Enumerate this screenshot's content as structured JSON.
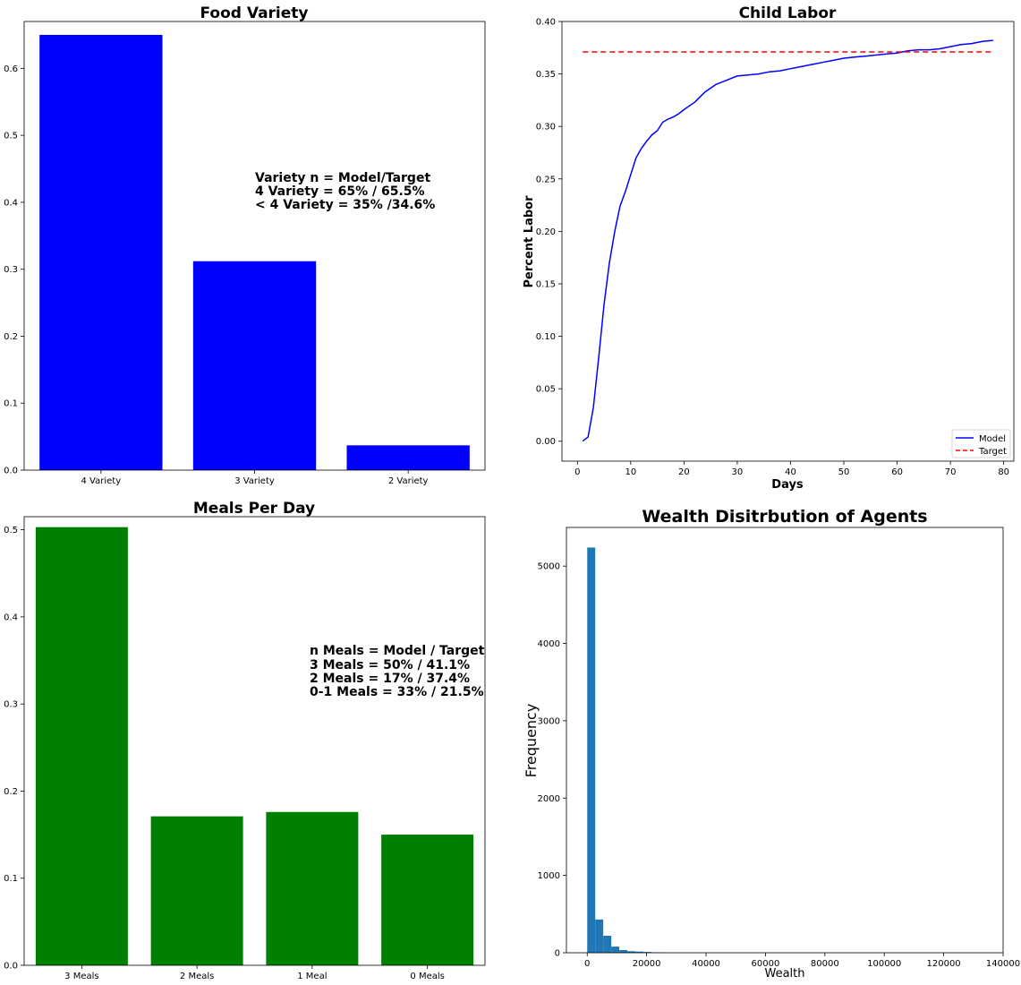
{
  "chart_data": [
    {
      "type": "bar",
      "title": "Food Variety",
      "categories": [
        "4 Variety",
        "3 Variety",
        "2 Variety"
      ],
      "values": [
        0.65,
        0.312,
        0.037
      ],
      "ylim": [
        0,
        0.67
      ],
      "yticks": [
        0.0,
        0.1,
        0.2,
        0.3,
        0.4,
        0.5,
        0.6
      ],
      "ytick_labels": [
        "0.0",
        "0.1",
        "0.2",
        "0.3",
        "0.4",
        "0.5",
        "0.6"
      ],
      "color": "#0000ff",
      "annotation": [
        "Variety n = Model/Target",
        "4 Variety = 65% / 65.5%",
        "< 4 Variety = 35% /34.6%"
      ]
    },
    {
      "type": "line",
      "title": "Child Labor",
      "xlabel": "Days",
      "ylabel": "Percent Labor",
      "xlim": [
        -2.9,
        81.9
      ],
      "ylim": [
        -0.019,
        0.4
      ],
      "xticks": [
        0,
        10,
        20,
        30,
        40,
        50,
        60,
        70,
        80
      ],
      "xtick_labels": [
        "0",
        "10",
        "20",
        "30",
        "40",
        "50",
        "60",
        "70",
        "80"
      ],
      "yticks": [
        0.0,
        0.05,
        0.1,
        0.15,
        0.2,
        0.25,
        0.3,
        0.35,
        0.4
      ],
      "ytick_labels": [
        "0.00",
        "0.05",
        "0.10",
        "0.15",
        "0.20",
        "0.25",
        "0.30",
        "0.35",
        "0.40"
      ],
      "legend_position": "lower-right",
      "series": [
        {
          "name": "Model",
          "color": "#0000ff",
          "style": "solid",
          "x": [
            1,
            2,
            3,
            4,
            5,
            6,
            7,
            8,
            9,
            10,
            11,
            12,
            13,
            14,
            15,
            16,
            17,
            18,
            19,
            20,
            22,
            24,
            26,
            28,
            30,
            32,
            34,
            36,
            38,
            40,
            42,
            44,
            46,
            48,
            50,
            52,
            54,
            56,
            58,
            60,
            62,
            64,
            66,
            68,
            70,
            72,
            74,
            76,
            78
          ],
          "y": [
            0.0,
            0.004,
            0.032,
            0.08,
            0.13,
            0.17,
            0.2,
            0.224,
            0.238,
            0.254,
            0.27,
            0.279,
            0.286,
            0.292,
            0.296,
            0.304,
            0.307,
            0.309,
            0.312,
            0.316,
            0.323,
            0.333,
            0.34,
            0.344,
            0.348,
            0.349,
            0.35,
            0.352,
            0.353,
            0.355,
            0.357,
            0.359,
            0.361,
            0.363,
            0.365,
            0.366,
            0.367,
            0.368,
            0.369,
            0.37,
            0.372,
            0.373,
            0.373,
            0.374,
            0.376,
            0.378,
            0.379,
            0.381,
            0.382
          ]
        },
        {
          "name": "Target",
          "color": "#ff0000",
          "style": "dashed",
          "x": [
            1,
            78
          ],
          "y": [
            0.371,
            0.371
          ]
        }
      ]
    },
    {
      "type": "bar",
      "title": "Meals Per Day",
      "categories": [
        "3 Meals",
        "2 Meals",
        "1 Meal",
        "0 Meals"
      ],
      "values": [
        0.503,
        0.171,
        0.176,
        0.15
      ],
      "ylim": [
        0,
        0.515
      ],
      "yticks": [
        0.0,
        0.1,
        0.2,
        0.3,
        0.4,
        0.5
      ],
      "ytick_labels": [
        "0.0",
        "0.1",
        "0.2",
        "0.3",
        "0.4",
        "0.5"
      ],
      "color": "#008000",
      "annotation": [
        "n Meals = Model / Target",
        "3 Meals  = 50% / 41.1%",
        "2 Meals = 17% / 37.4%",
        "0-1 Meals = 33% / 21.5%"
      ]
    },
    {
      "type": "bar",
      "subtype": "histogram",
      "title": "Wealth Disitrbution of Agents",
      "xlabel": "Wealth",
      "ylabel": "Frequency",
      "xlim": [
        -7000,
        140000
      ],
      "ylim": [
        0,
        5500
      ],
      "xticks": [
        0,
        20000,
        40000,
        60000,
        80000,
        100000,
        120000,
        140000
      ],
      "xtick_labels": [
        "0",
        "20000",
        "40000",
        "60000",
        "80000",
        "100000",
        "120000",
        "140000"
      ],
      "yticks": [
        0,
        1000,
        2000,
        3000,
        4000,
        5000
      ],
      "ytick_labels": [
        "0",
        "1000",
        "2000",
        "3000",
        "4000",
        "5000"
      ],
      "color": "#1f77b4",
      "bin_start": 0,
      "bin_width": 2700,
      "values": [
        5240,
        430,
        220,
        80,
        35,
        20,
        15,
        10,
        6,
        4
      ]
    }
  ]
}
